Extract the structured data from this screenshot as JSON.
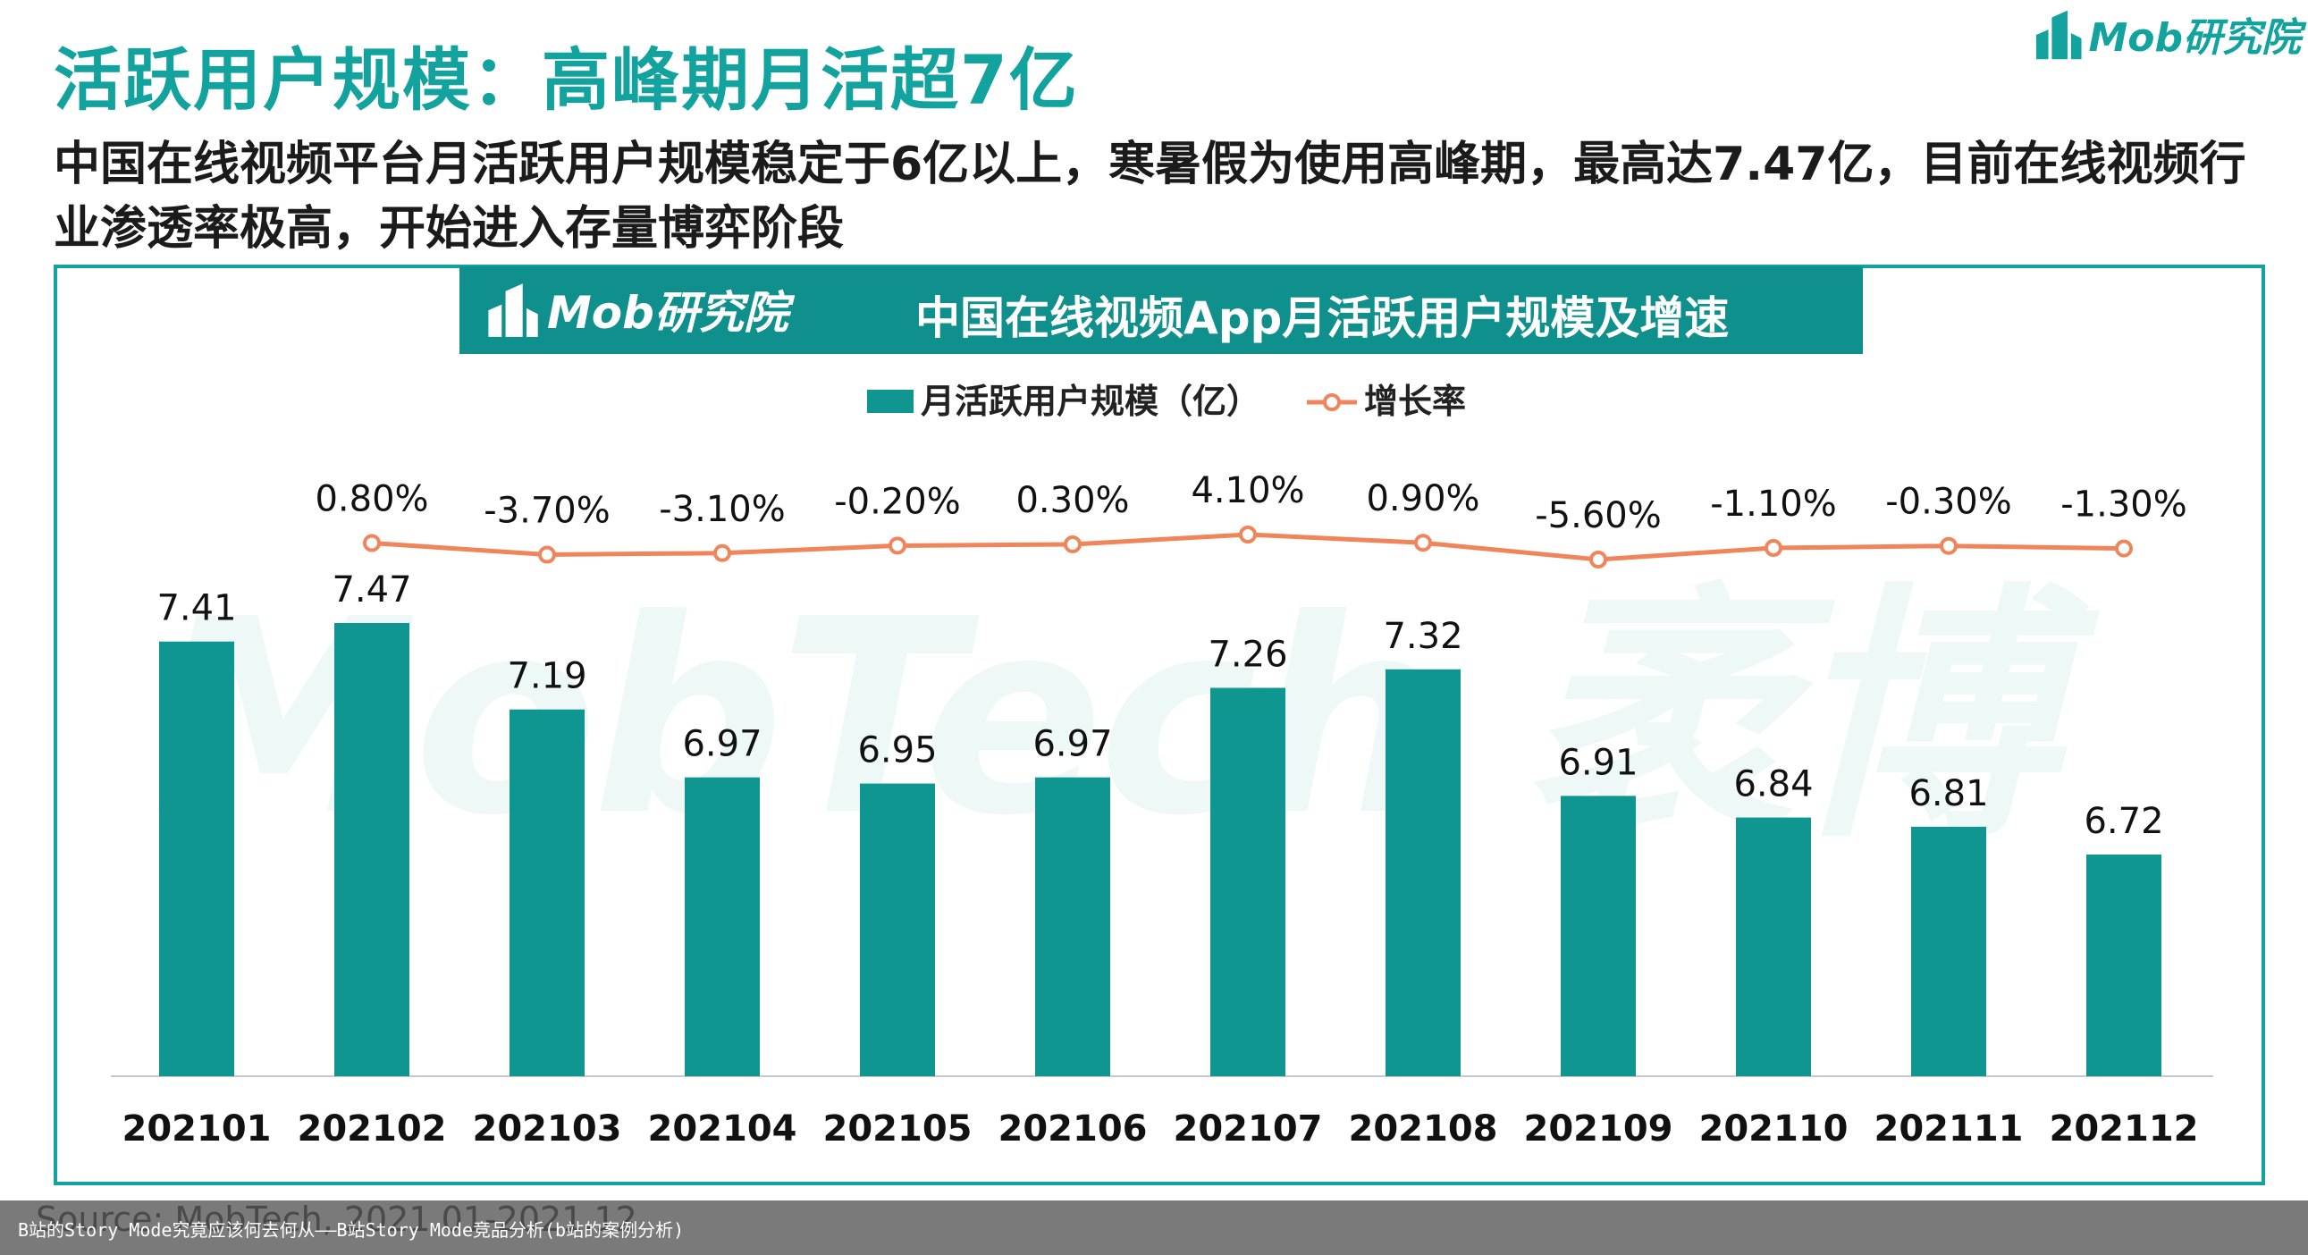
{
  "title": "活跃用户规模：高峰期月活超7亿",
  "subtitle": "中国在线视频平台月活跃用户规模稳定于6亿以上，寒暑假为使用高峰期，最高达7.47亿，目前在线视频行业渗透率极高，开始进入存量博弈阶段",
  "brand": {
    "logo_text": "Mob研究院",
    "watermark_text": "MobTech 袤博"
  },
  "colors": {
    "accent": "#13a39e",
    "bar": "#0f9690",
    "line": "#f0845a"
  },
  "source_note": "Source: MobTech, 2021.01-2021.12",
  "footer_caption": "B站的Story Mode究竟应该何去何从——B站Story Mode竞品分析(b站的案例分析)",
  "chart_data": {
    "type": "bar",
    "title": "中国在线视频App月活跃用户规模及增速",
    "categories": [
      "202101",
      "202102",
      "202103",
      "202104",
      "202105",
      "202106",
      "202107",
      "202108",
      "202109",
      "202110",
      "202111",
      "202112"
    ],
    "series": [
      {
        "name": "月活跃用户规模（亿）",
        "type": "bar",
        "values": [
          7.41,
          7.47,
          7.19,
          6.97,
          6.95,
          6.97,
          7.26,
          7.32,
          6.91,
          6.84,
          6.81,
          6.72
        ],
        "labels": [
          "7.41",
          "7.47",
          "7.19",
          "6.97",
          "6.95",
          "6.97",
          "7.26",
          "7.32",
          "6.91",
          "6.84",
          "6.81",
          "6.72"
        ]
      },
      {
        "name": "增长率",
        "type": "line",
        "values": [
          null,
          0.8,
          -3.7,
          -3.1,
          -0.2,
          0.3,
          4.1,
          0.9,
          -5.6,
          -1.1,
          -0.3,
          -1.3
        ],
        "labels": [
          "",
          "0.80%",
          "-3.70%",
          "-3.10%",
          "-0.20%",
          "0.30%",
          "4.10%",
          "0.90%",
          "-5.60%",
          "-1.10%",
          "-0.30%",
          "-1.30%"
        ]
      }
    ],
    "legend_position": "top-center",
    "grid": false
  }
}
